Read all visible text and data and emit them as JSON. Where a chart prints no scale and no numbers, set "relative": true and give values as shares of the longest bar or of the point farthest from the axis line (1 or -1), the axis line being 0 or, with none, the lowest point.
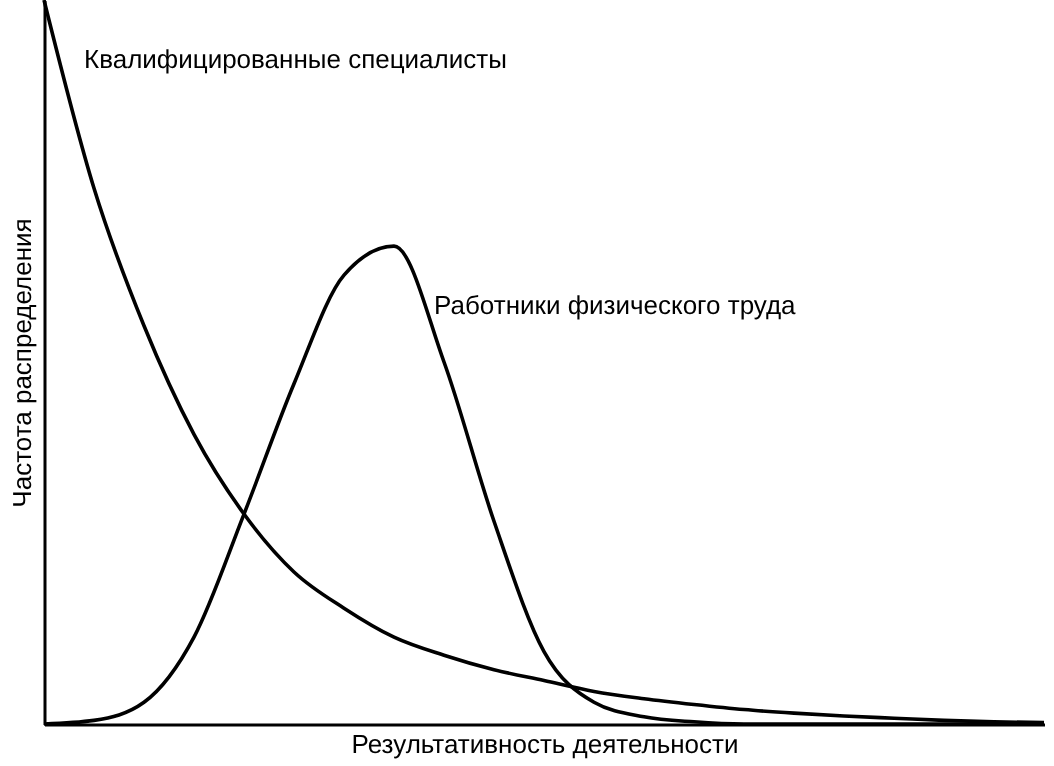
{
  "chart_data": {
    "type": "line",
    "relative": true,
    "xlabel": "Результативность деятельности",
    "ylabel": "Частота распределения",
    "categories": [
      null,
      null,
      null,
      null,
      null,
      null,
      null,
      null,
      null,
      null,
      null,
      null,
      null,
      null,
      null,
      null,
      null,
      null,
      null,
      null,
      null
    ],
    "series": [
      {
        "name": "Квалифицированные специалисты",
        "color": "#000000",
        "values": [
          1,
          0.74,
          0.55,
          0.4,
          0.29,
          0.21,
          0.16,
          0.12,
          0.095,
          0.075,
          0.06,
          0.045,
          0.035,
          0.027,
          0.02,
          0.015,
          0.011,
          0.008,
          0.005,
          0.003,
          0.002
        ]
      },
      {
        "name": "Работники физического труда",
        "color": "#000000",
        "values": [
          0,
          0.005,
          0.03,
          0.12,
          0.29,
          0.47,
          0.62,
          0.66,
          0.5,
          0.28,
          0.1,
          0.03,
          0.01,
          0.003,
          0,
          0,
          0,
          0,
          0,
          0,
          0
        ]
      }
    ],
    "grid": false,
    "line_style": "solid"
  }
}
